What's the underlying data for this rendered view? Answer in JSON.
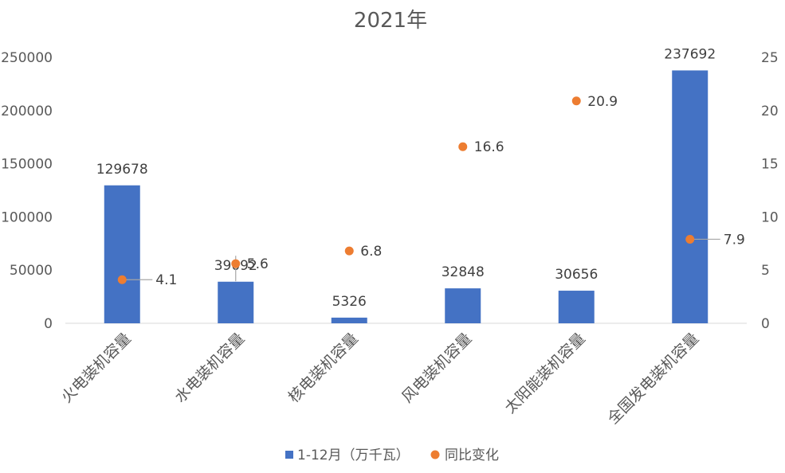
{
  "chart_data": {
    "type": "bar",
    "title": "2021年",
    "categories": [
      "火电装机容量",
      "水电装机容量",
      "核电装机容量",
      "风电装机容量",
      "太阳能装机容量",
      "全国发电装机容量"
    ],
    "series": [
      {
        "name": "1-12月（万千瓦）",
        "type": "bar",
        "axis": "left",
        "color": "#4472C4",
        "values": [
          129678,
          39092,
          5326,
          32848,
          30656,
          237692
        ]
      },
      {
        "name": "同比变化",
        "type": "scatter",
        "axis": "right",
        "color": "#ED7D31",
        "values": [
          4.1,
          5.6,
          6.8,
          16.6,
          20.9,
          7.9
        ]
      }
    ],
    "y_left": {
      "min": 0,
      "max": 250000,
      "step": 50000,
      "tick_labels": [
        "0",
        "50000",
        "100000",
        "150000",
        "200000",
        "250000"
      ]
    },
    "y_right": {
      "min": 0,
      "max": 25,
      "step": 5,
      "tick_labels": [
        "0",
        "5",
        "10",
        "15",
        "20",
        "25"
      ]
    },
    "bar_labels": [
      "129678",
      "39092",
      "5326",
      "32848",
      "30656",
      "237692"
    ],
    "point_labels": [
      "4.1",
      "5.6",
      "6.8",
      "16.6",
      "20.9",
      "7.9"
    ],
    "grid": false,
    "legend_position": "bottom"
  }
}
